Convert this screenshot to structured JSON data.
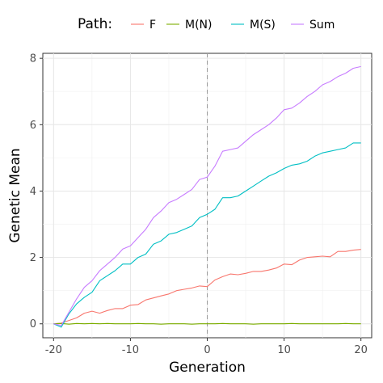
{
  "chart_data": {
    "type": "line",
    "xlabel": "Generation",
    "ylabel": "Genetic Mean",
    "xlim": [
      -21.4,
      21.4
    ],
    "ylim": [
      -0.42,
      8.15
    ],
    "xticks": [
      -20,
      -10,
      0,
      10,
      20
    ],
    "yticks": [
      0,
      2,
      4,
      6,
      8
    ],
    "vline": 0,
    "grid": true,
    "legend": {
      "title": "Path:",
      "position": "top"
    },
    "series": [
      {
        "name": "F",
        "color": "#F8766D",
        "x": [
          -20,
          -19,
          -18,
          -17,
          -16,
          -15,
          -14,
          -13,
          -12,
          -11,
          -10,
          -9,
          -8,
          -7,
          -6,
          -5,
          -4,
          -3,
          -2,
          -1,
          0,
          1,
          2,
          3,
          4,
          5,
          6,
          7,
          8,
          9,
          10,
          11,
          12,
          13,
          14,
          15,
          16,
          17,
          18,
          19,
          20
        ],
        "y": [
          0.0,
          0.02,
          0.1,
          0.18,
          0.32,
          0.38,
          0.32,
          0.4,
          0.46,
          0.46,
          0.56,
          0.58,
          0.72,
          0.78,
          0.84,
          0.9,
          1.0,
          1.04,
          1.08,
          1.14,
          1.12,
          1.32,
          1.42,
          1.5,
          1.48,
          1.52,
          1.58,
          1.58,
          1.62,
          1.68,
          1.8,
          1.78,
          1.92,
          2.0,
          2.02,
          2.04,
          2.02,
          2.18,
          2.18,
          2.22,
          2.24
        ]
      },
      {
        "name": "M(N)",
        "color": "#7CAE00",
        "x": [
          -20,
          -19,
          -18,
          -17,
          -16,
          -15,
          -14,
          -13,
          -12,
          -11,
          -10,
          -9,
          -8,
          -7,
          -6,
          -5,
          -4,
          -3,
          -2,
          -1,
          0,
          1,
          2,
          3,
          4,
          5,
          6,
          7,
          8,
          9,
          10,
          11,
          12,
          13,
          14,
          15,
          16,
          17,
          18,
          19,
          20
        ],
        "y": [
          0.0,
          0.01,
          -0.01,
          0.01,
          0.0,
          0.01,
          0.0,
          0.01,
          0.0,
          0.0,
          0.0,
          0.01,
          0.0,
          0.0,
          -0.01,
          0.0,
          0.0,
          0.0,
          -0.01,
          0.0,
          0.0,
          0.0,
          0.01,
          0.0,
          0.0,
          0.0,
          -0.01,
          0.0,
          0.0,
          0.0,
          0.0,
          0.01,
          0.0,
          0.0,
          0.0,
          0.0,
          0.0,
          0.0,
          0.01,
          0.0,
          0.0
        ]
      },
      {
        "name": "M(S)",
        "color": "#00BFC4",
        "x": [
          -20,
          -19,
          -18,
          -17,
          -16,
          -15,
          -14,
          -13,
          -12,
          -11,
          -10,
          -9,
          -8,
          -7,
          -6,
          -5,
          -4,
          -3,
          -2,
          -1,
          0,
          1,
          2,
          3,
          4,
          5,
          6,
          7,
          8,
          9,
          10,
          11,
          12,
          13,
          14,
          15,
          16,
          17,
          18,
          19,
          20
        ],
        "y": [
          0.0,
          -0.1,
          0.3,
          0.6,
          0.8,
          0.95,
          1.3,
          1.45,
          1.6,
          1.8,
          1.8,
          2.0,
          2.1,
          2.4,
          2.5,
          2.7,
          2.75,
          2.85,
          2.95,
          3.2,
          3.3,
          3.45,
          3.8,
          3.8,
          3.85,
          4.0,
          4.15,
          4.3,
          4.45,
          4.55,
          4.68,
          4.78,
          4.82,
          4.9,
          5.05,
          5.15,
          5.2,
          5.25,
          5.3,
          5.45,
          5.45
        ]
      },
      {
        "name": "Sum",
        "color": "#C77CFF",
        "x": [
          -20,
          -19,
          -18,
          -17,
          -16,
          -15,
          -14,
          -13,
          -12,
          -11,
          -10,
          -9,
          -8,
          -7,
          -6,
          -5,
          -4,
          -3,
          -2,
          -1,
          0,
          1,
          2,
          3,
          4,
          5,
          6,
          7,
          8,
          9,
          10,
          11,
          12,
          13,
          14,
          15,
          16,
          17,
          18,
          19,
          20
        ],
        "y": [
          0.0,
          -0.05,
          0.35,
          0.75,
          1.1,
          1.3,
          1.6,
          1.8,
          2.0,
          2.25,
          2.35,
          2.6,
          2.85,
          3.2,
          3.4,
          3.65,
          3.75,
          3.9,
          4.05,
          4.35,
          4.42,
          4.75,
          5.2,
          5.25,
          5.3,
          5.5,
          5.7,
          5.85,
          6.0,
          6.2,
          6.45,
          6.5,
          6.65,
          6.85,
          7.0,
          7.2,
          7.3,
          7.45,
          7.55,
          7.7,
          7.75
        ]
      }
    ]
  }
}
